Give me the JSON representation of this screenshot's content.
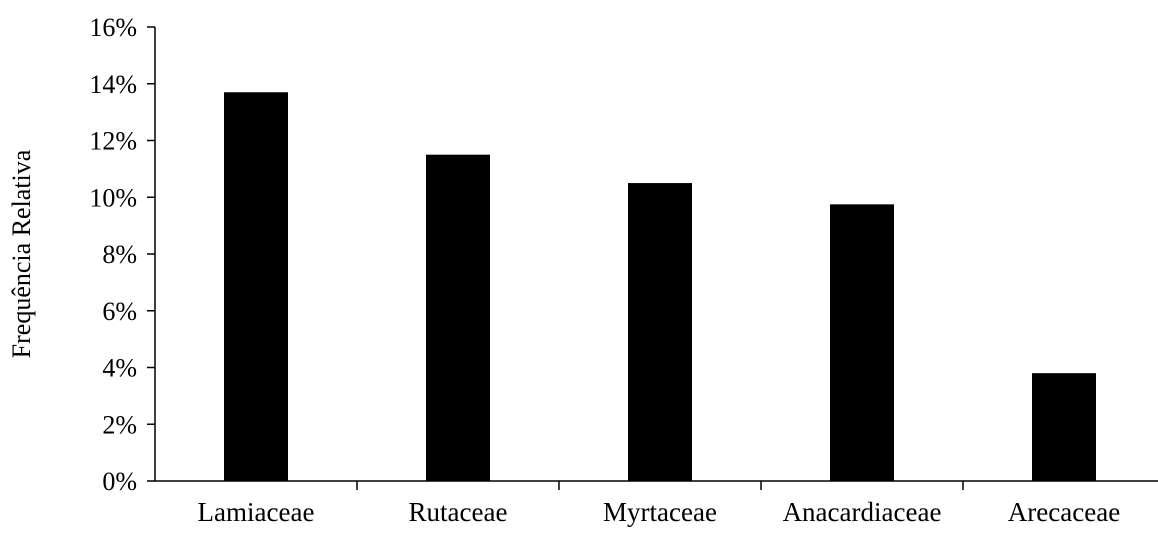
{
  "chart_data": {
    "type": "bar",
    "title": "",
    "xlabel": "",
    "ylabel": "Frequência Relativa",
    "categories": [
      "Lamiaceae",
      "Rutaceae",
      "Myrtaceae",
      "Anacardiaceae",
      "Arecaceae"
    ],
    "values": [
      0.137,
      0.115,
      0.105,
      0.0975,
      0.038
    ],
    "ylim": [
      0,
      0.16
    ],
    "yticks": [
      0,
      0.02,
      0.04,
      0.06,
      0.08,
      0.1,
      0.12,
      0.14,
      0.16
    ],
    "ytick_labels": [
      "0%",
      "2%",
      "4%",
      "6%",
      "8%",
      "10%",
      "12%",
      "14%",
      "16%"
    ],
    "grid": false,
    "legend": "none",
    "bar_color": "#000000"
  }
}
